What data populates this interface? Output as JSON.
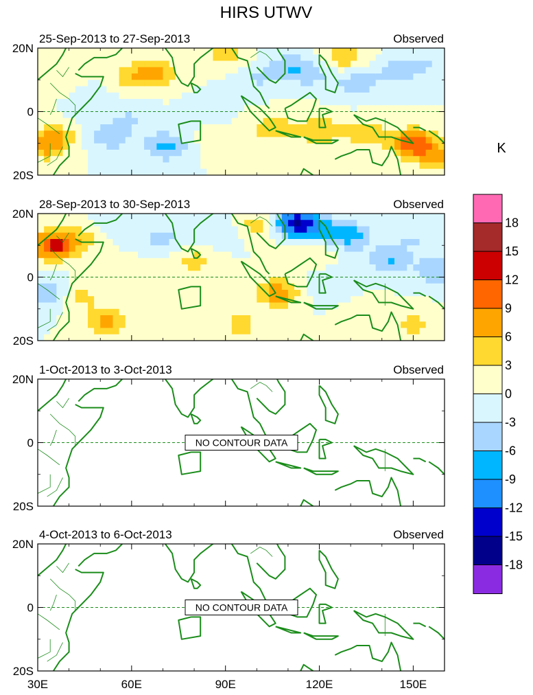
{
  "chart_data": {
    "type": "heatmap",
    "title": "HIRS UTWV",
    "unit_label": "K",
    "x_axis": {
      "range": [
        30,
        160
      ],
      "ticks": [
        30,
        60,
        90,
        120,
        150
      ],
      "tick_labels": [
        "30E",
        "60E",
        "90E",
        "120E",
        "150E"
      ]
    },
    "y_axis": {
      "range": [
        -20,
        20
      ],
      "ticks": [
        20,
        0,
        -20
      ],
      "tick_labels": [
        "20N",
        "0",
        "20S"
      ]
    },
    "panels": [
      {
        "period": "25-Sep-2013 to 27-Sep-2013",
        "label_right": "Observed",
        "has_data": true,
        "anomalies": [
          {
            "lon": 36,
            "lat": 9,
            "value": 3
          },
          {
            "lon": 46,
            "lat": 3,
            "value": -3
          },
          {
            "lon": 53,
            "lat": -8,
            "value": -5
          },
          {
            "lon": 36,
            "lat": -8,
            "value": 5
          },
          {
            "lon": 32,
            "lat": -11,
            "value": 6
          },
          {
            "lon": 68,
            "lat": 12,
            "value": 6
          },
          {
            "lon": 60,
            "lat": 11,
            "value": 4
          },
          {
            "lon": 71,
            "lat": -11,
            "value": -7
          },
          {
            "lon": 60,
            "lat": -2,
            "value": -3
          },
          {
            "lon": 85,
            "lat": 0,
            "value": -2
          },
          {
            "lon": 90,
            "lat": 18,
            "value": 4
          },
          {
            "lon": 100,
            "lat": 10,
            "value": -3
          },
          {
            "lon": 88,
            "lat": -9,
            "value": 3
          },
          {
            "lon": 110,
            "lat": 14,
            "value": -5
          },
          {
            "lon": 118,
            "lat": 12,
            "value": -4
          },
          {
            "lon": 128,
            "lat": 17,
            "value": 5
          },
          {
            "lon": 132,
            "lat": 9,
            "value": -5
          },
          {
            "lon": 145,
            "lat": 13,
            "value": -4
          },
          {
            "lon": 155,
            "lat": 15,
            "value": -3
          },
          {
            "lon": 105,
            "lat": -5,
            "value": 5
          },
          {
            "lon": 120,
            "lat": -6,
            "value": 6
          },
          {
            "lon": 135,
            "lat": -7,
            "value": 5
          },
          {
            "lon": 150,
            "lat": -10,
            "value": 11
          },
          {
            "lon": 158,
            "lat": -14,
            "value": 6
          }
        ]
      },
      {
        "period": "28-Sep-2013 to 30-Sep-2013",
        "label_right": "Observed",
        "has_data": true,
        "anomalies": [
          {
            "lon": 35,
            "lat": 10,
            "value": 13
          },
          {
            "lon": 45,
            "lat": 12,
            "value": 4
          },
          {
            "lon": 43,
            "lat": -6,
            "value": 4
          },
          {
            "lon": 52,
            "lat": -14,
            "value": 7
          },
          {
            "lon": 60,
            "lat": 0,
            "value": 3
          },
          {
            "lon": 55,
            "lat": 16,
            "value": -3
          },
          {
            "lon": 70,
            "lat": 12,
            "value": -4
          },
          {
            "lon": 80,
            "lat": 5,
            "value": 4
          },
          {
            "lon": 72,
            "lat": -10,
            "value": 3
          },
          {
            "lon": 90,
            "lat": 14,
            "value": -3
          },
          {
            "lon": 100,
            "lat": 16,
            "value": 5
          },
          {
            "lon": 107,
            "lat": -5,
            "value": 8
          },
          {
            "lon": 112,
            "lat": 17,
            "value": -14
          },
          {
            "lon": 118,
            "lat": 8,
            "value": 3
          },
          {
            "lon": 120,
            "lat": 15,
            "value": -6
          },
          {
            "lon": 130,
            "lat": 13,
            "value": -7
          },
          {
            "lon": 142,
            "lat": 5,
            "value": -6
          },
          {
            "lon": 150,
            "lat": 12,
            "value": -3
          },
          {
            "lon": 123,
            "lat": -3,
            "value": -3
          },
          {
            "lon": 135,
            "lat": -12,
            "value": 3
          },
          {
            "lon": 158,
            "lat": 2,
            "value": -6
          },
          {
            "lon": 33,
            "lat": -5,
            "value": -6
          },
          {
            "lon": 95,
            "lat": -15,
            "value": 4
          },
          {
            "lon": 150,
            "lat": -15,
            "value": 4
          }
        ]
      },
      {
        "period": "1-Oct-2013 to 3-Oct-2013",
        "label_right": "Observed",
        "has_data": false,
        "no_data_text": "NO CONTOUR DATA"
      },
      {
        "period": "4-Oct-2013 to 6-Oct-2013",
        "label_right": "Observed",
        "has_data": false,
        "no_data_text": "NO CONTOUR DATA"
      }
    ],
    "colorbar": {
      "colors": [
        "#ff69b4",
        "#a52a2a",
        "#cc0000",
        "#ff6600",
        "#ffa500",
        "#ffd92f",
        "#ffffcc",
        "#d9f6ff",
        "#a9d6ff",
        "#00b6ff",
        "#1e90ff",
        "#0000cd",
        "#00008b",
        "#8a2be2"
      ],
      "labels": [
        "18",
        "15",
        "12",
        "9",
        "6",
        "3",
        "0",
        "-3",
        "-6",
        "-9",
        "-12",
        "-15",
        "-18"
      ],
      "levels": [
        18,
        15,
        12,
        9,
        6,
        3,
        0,
        -3,
        -6,
        -9,
        -12,
        -15,
        -18
      ]
    },
    "colors": {
      "coastline": "#1a8c1a",
      "equator": "#1a8c1a",
      "frame": "#000000"
    }
  }
}
